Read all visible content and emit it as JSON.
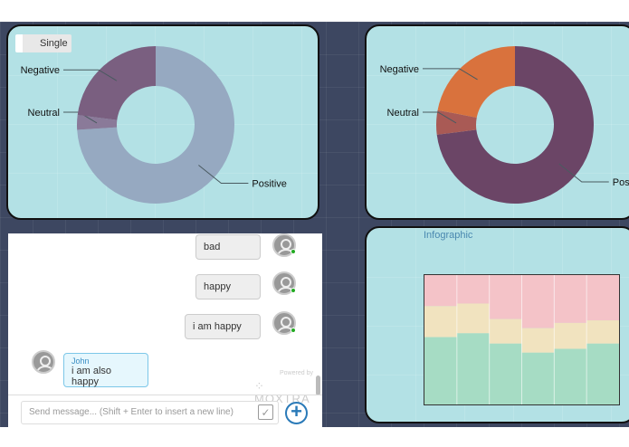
{
  "left_chart": {
    "mode_button": "Single",
    "chart_data": {
      "type": "pie",
      "style": "donut",
      "categories": [
        "Positive",
        "Neutral",
        "Negative"
      ],
      "values": [
        74,
        3,
        23
      ],
      "colors": [
        "#96a9c1",
        "#8a7a99",
        "#7a5f80"
      ]
    }
  },
  "right_chart": {
    "chart_data": {
      "type": "pie",
      "style": "donut",
      "categories": [
        "Positive",
        "Neutral",
        "Negative"
      ],
      "values": [
        73,
        5,
        22
      ],
      "colors": [
        "#6b4566",
        "#a95a55",
        "#d9723d"
      ]
    }
  },
  "infographic": {
    "title": "Infographic",
    "chart_data": {
      "type": "area",
      "style": "stacked-band",
      "columns": 6,
      "series": [
        {
          "color": "#f4c3c8",
          "values": [
            24,
            22,
            34,
            41,
            37,
            35
          ]
        },
        {
          "color": "#f1e3bf",
          "values": [
            24,
            23,
            19,
            19,
            20,
            18
          ]
        },
        {
          "color": "#a6dcc4",
          "values": [
            52,
            55,
            47,
            40,
            43,
            47
          ]
        }
      ]
    }
  },
  "chat": {
    "messages": [
      {
        "side": "right",
        "text": "bad"
      },
      {
        "side": "right",
        "text": "happy"
      },
      {
        "side": "right",
        "text": "i am happy"
      },
      {
        "side": "left",
        "sender": "John",
        "text": "i am also happy"
      }
    ],
    "powered_by": "Powered by",
    "brand": "MOXTRA",
    "input_placeholder": "Send message... (Shift + Enter to insert a new line)"
  }
}
